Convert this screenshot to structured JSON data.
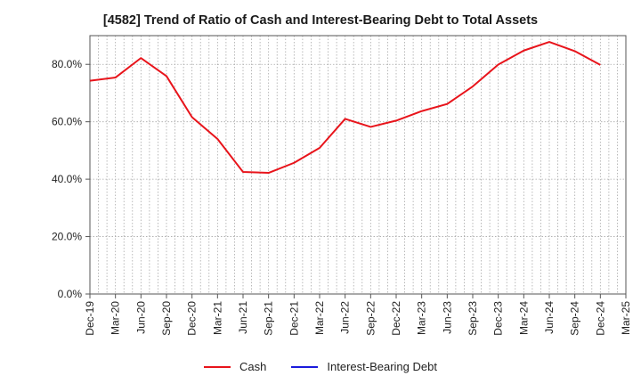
{
  "chart_data": {
    "type": "line",
    "title": "[4582]  Trend of Ratio of Cash and Interest-Bearing Debt to Total Assets",
    "xlabel": "",
    "ylabel": "",
    "ylim": [
      0,
      90
    ],
    "y_ticks": [
      "0.0%",
      "20.0%",
      "40.0%",
      "60.0%",
      "80.0%"
    ],
    "y_tick_values": [
      0,
      20,
      40,
      60,
      80
    ],
    "x_tick_labels": [
      "Dec-19",
      "Mar-20",
      "Jun-20",
      "Sep-20",
      "Dec-20",
      "Mar-21",
      "Jun-21",
      "Sep-21",
      "Dec-21",
      "Mar-22",
      "Jun-22",
      "Sep-22",
      "Dec-22",
      "Mar-23",
      "Jun-23",
      "Sep-23",
      "Dec-23",
      "Mar-24",
      "Jun-24",
      "Sep-24",
      "Dec-24",
      "Mar-25"
    ],
    "grid": true,
    "legend_position": "bottom",
    "series": [
      {
        "name": "Cash",
        "color": "#e8141b",
        "x": [
          "Dec-19",
          "Mar-20",
          "Jun-20",
          "Sep-20",
          "Dec-20",
          "Mar-21",
          "Jun-21",
          "Sep-21",
          "Dec-21",
          "Mar-22",
          "Jun-22",
          "Sep-22",
          "Dec-22",
          "Mar-23",
          "Jun-23",
          "Sep-23",
          "Dec-23",
          "Mar-24",
          "Jun-24",
          "Sep-24",
          "Dec-24"
        ],
        "values": [
          74.3,
          75.4,
          82.2,
          75.9,
          61.6,
          54.0,
          42.5,
          42.2,
          45.7,
          50.9,
          61.0,
          58.2,
          60.4,
          63.7,
          66.2,
          72.3,
          79.9,
          84.8,
          87.8,
          84.6,
          79.8
        ]
      },
      {
        "name": "Interest-Bearing Debt",
        "color": "#1a1adc",
        "x": [],
        "values": []
      }
    ]
  }
}
